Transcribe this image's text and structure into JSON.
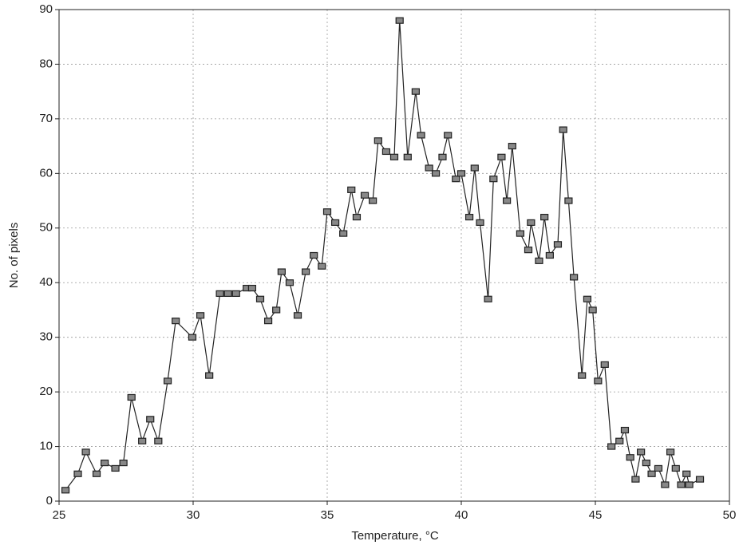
{
  "chart_data": {
    "type": "line",
    "x_label": "Temperature, °C",
    "y_label": "No. of pixels",
    "xlim": [
      25,
      50
    ],
    "xticks": [
      25,
      30,
      35,
      40,
      45,
      50
    ],
    "ylim": [
      0,
      90
    ],
    "yticks": [
      0,
      10,
      20,
      30,
      40,
      50,
      60,
      70,
      80,
      90
    ],
    "grid": true,
    "series": [
      {
        "color": "#222222",
        "x": [
          25.24,
          25.7,
          26.0,
          26.4,
          26.7,
          27.1,
          27.4,
          27.7,
          28.1,
          28.4,
          28.7,
          29.05,
          29.35,
          29.97,
          30.27,
          30.6,
          31.0,
          31.3,
          31.6,
          32.0,
          32.2,
          32.5,
          32.8,
          33.1,
          33.3,
          33.6,
          33.9,
          34.2,
          34.5,
          34.8,
          35.0,
          35.3,
          35.6,
          35.9,
          36.1,
          36.4,
          36.7,
          36.9,
          37.2,
          37.5,
          37.7,
          38.0,
          38.3,
          38.5,
          38.8,
          39.05,
          39.3,
          39.5,
          39.8,
          40.0,
          40.3,
          40.5,
          40.7,
          41.0,
          41.2,
          41.5,
          41.7,
          41.9,
          42.2,
          42.5,
          42.6,
          42.9,
          43.1,
          43.3,
          43.6,
          43.8,
          44.0,
          44.2,
          44.5,
          44.7,
          44.9,
          45.1,
          45.35,
          45.6,
          45.9,
          46.1,
          46.3,
          46.5,
          46.7,
          46.9,
          47.1,
          47.35,
          47.6,
          47.8,
          48.0,
          48.2,
          48.4,
          48.5,
          48.9
        ],
        "values": [
          2,
          5,
          9,
          5,
          7,
          6,
          7,
          19,
          11,
          15,
          11,
          22,
          33,
          30,
          34,
          23,
          38,
          38,
          38,
          39,
          39,
          37,
          33,
          35,
          42,
          40,
          34,
          42,
          45,
          43,
          53,
          51,
          49,
          57,
          52,
          56,
          55,
          66,
          64,
          63,
          88,
          63,
          75,
          67,
          61,
          60,
          63,
          67,
          59,
          60,
          52,
          61,
          51,
          37,
          59,
          63,
          55,
          65,
          49,
          46,
          51,
          44,
          52,
          45,
          47,
          68,
          55,
          41,
          23,
          37,
          35,
          22,
          25,
          10,
          11,
          13,
          8,
          4,
          9,
          7,
          5,
          6,
          3,
          9,
          6,
          3,
          5,
          3,
          4
        ]
      }
    ]
  }
}
